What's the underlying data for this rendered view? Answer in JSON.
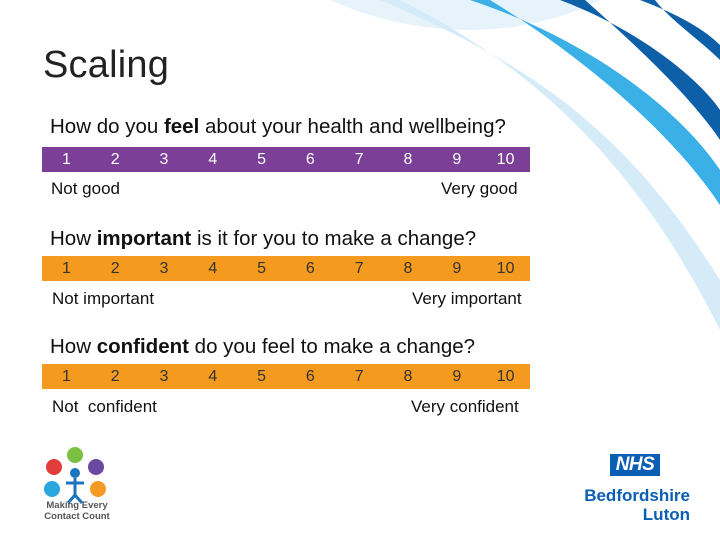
{
  "slide": {
    "title": "Scaling"
  },
  "questions": [
    {
      "prefix": "How do you ",
      "emphasis": "feel",
      "suffix": " about your health and wellbeing?",
      "scale": [
        "1",
        "2",
        "3",
        "4",
        "5",
        "6",
        "7",
        "8",
        "9",
        "10"
      ],
      "low_label": "Not good",
      "high_label": "Very good",
      "color": "#7b3f98"
    },
    {
      "prefix": "How ",
      "emphasis": "important",
      "suffix": " is it for you to make a change?",
      "scale": [
        "1",
        "2",
        "3",
        "4",
        "5",
        "6",
        "7",
        "8",
        "9",
        "10"
      ],
      "low_label": "Not important",
      "high_label": "Very important",
      "color": "#f39a1f"
    },
    {
      "prefix": "How ",
      "emphasis": "confident",
      "suffix": " do you feel to make a change?",
      "scale": [
        "1",
        "2",
        "3",
        "4",
        "5",
        "6",
        "7",
        "8",
        "9",
        "10"
      ],
      "low_label": "Not  confident",
      "high_label": "Very confident",
      "color": "#f39a1f"
    }
  ],
  "logos": {
    "mecc_line1": "Making Every",
    "mecc_line2": "Contact Count",
    "nhs": "NHS",
    "org_line1": "Bedfordshire",
    "org_line2": "Luton"
  },
  "colors": {
    "swoosh_dark": "#0d5fa8",
    "swoosh_light": "#3ab0e6",
    "nhs_blue": "#0a5eb4"
  }
}
